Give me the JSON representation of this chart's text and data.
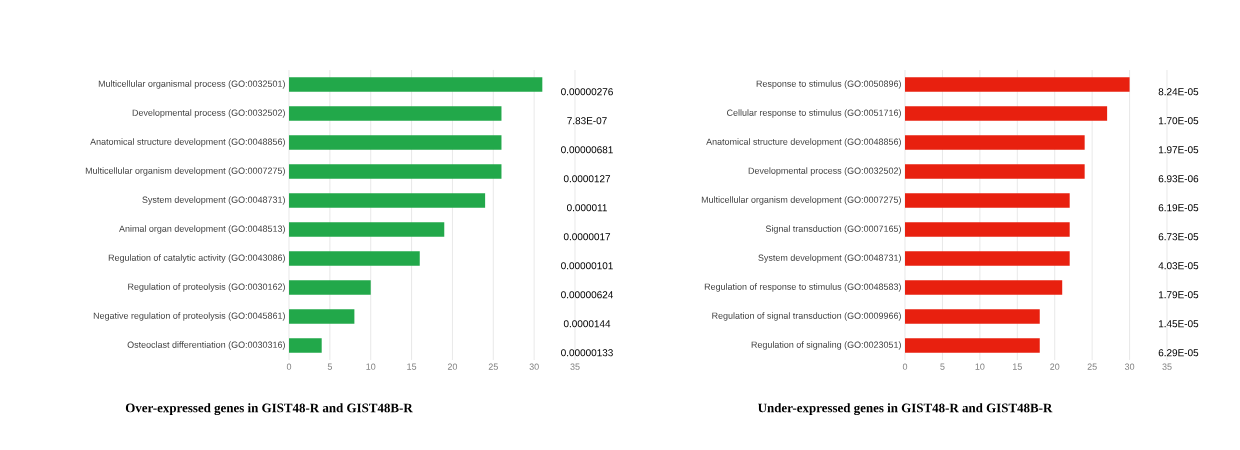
{
  "chart_data": [
    {
      "type": "bar",
      "orientation": "horizontal",
      "title": "Over-expressed genes in GIST48-R and GIST48B-R",
      "categories": [
        "Multicellular organismal process (GO:0032501)",
        "Developmental process (GO:0032502)",
        "Anatomical structure development (GO:0048856)",
        "Multicellular organism development (GO:0007275)",
        "System development (GO:0048731)",
        "Animal organ development (GO:0048513)",
        "Regulation of catalytic activity (GO:0043086)",
        "Regulation of proteolysis (GO:0030162)",
        "Negative regulation of proteolysis (GO:0045861)",
        "Osteoclast differentiation (GO:0030316)"
      ],
      "values": [
        31,
        26,
        26,
        26,
        24,
        19,
        16,
        10,
        8,
        4
      ],
      "annotations": [
        "0.00000276",
        "7.83E-07",
        "0.00000681",
        "0.0000127",
        "0.000011",
        "0.0000017",
        "0.00000101",
        "0.00000624",
        "0.0000144",
        "0.00000133"
      ],
      "color": "#22a84a",
      "xlim": [
        0,
        35
      ],
      "xticks": [
        0,
        5,
        10,
        15,
        20,
        25,
        30,
        35
      ],
      "grid": "x"
    },
    {
      "type": "bar",
      "orientation": "horizontal",
      "title": "Under-expressed genes in GIST48-R and GIST48B-R",
      "categories": [
        "Response to stimulus (GO:0050896)",
        "Cellular response to stimulus (GO:0051716)",
        "Anatomical structure development (GO:0048856)",
        "Developmental process (GO:0032502)",
        "Multicellular organism development (GO:0007275)",
        "Signal transduction (GO:0007165)",
        "System development (GO:0048731)",
        "Regulation of response to stimulus (GO:0048583)",
        "Regulation of signal transduction (GO:0009966)",
        "Regulation of signaling (GO:0023051)"
      ],
      "values": [
        30,
        27,
        24,
        24,
        22,
        22,
        22,
        21,
        18,
        18
      ],
      "annotations": [
        "8.24E-05",
        "1.70E-05",
        "1.97E-05",
        "6.93E-06",
        "6.19E-05",
        "6.73E-05",
        "4.03E-05",
        "1.79E-05",
        "1.45E-05",
        "6.29E-05"
      ],
      "color": "#e8200f",
      "xlim": [
        0,
        35
      ],
      "xticks": [
        0,
        5,
        10,
        15,
        20,
        25,
        30,
        35
      ],
      "grid": "x"
    }
  ]
}
